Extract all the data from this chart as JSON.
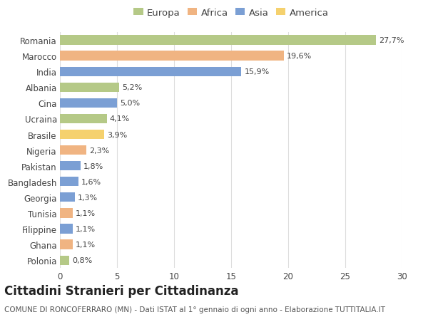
{
  "countries": [
    "Romania",
    "Marocco",
    "India",
    "Albania",
    "Cina",
    "Ucraina",
    "Brasile",
    "Nigeria",
    "Pakistan",
    "Bangladesh",
    "Georgia",
    "Tunisia",
    "Filippine",
    "Ghana",
    "Polonia"
  ],
  "values": [
    27.7,
    19.6,
    15.9,
    5.2,
    5.0,
    4.1,
    3.9,
    2.3,
    1.8,
    1.6,
    1.3,
    1.1,
    1.1,
    1.1,
    0.8
  ],
  "labels": [
    "27,7%",
    "19,6%",
    "15,9%",
    "5,2%",
    "5,0%",
    "4,1%",
    "3,9%",
    "2,3%",
    "1,8%",
    "1,6%",
    "1,3%",
    "1,1%",
    "1,1%",
    "1,1%",
    "0,8%"
  ],
  "continents": [
    "Europa",
    "Africa",
    "Asia",
    "Europa",
    "Asia",
    "Europa",
    "America",
    "Africa",
    "Asia",
    "Asia",
    "Asia",
    "Africa",
    "Asia",
    "Africa",
    "Europa"
  ],
  "continent_colors": {
    "Europa": "#b5c987",
    "Africa": "#f0b482",
    "Asia": "#7b9fd4",
    "America": "#f5d16e"
  },
  "legend_order": [
    "Europa",
    "Africa",
    "Asia",
    "America"
  ],
  "title": "Cittadini Stranieri per Cittadinanza",
  "subtitle": "COMUNE DI RONCOFERRARO (MN) - Dati ISTAT al 1° gennaio di ogni anno - Elaborazione TUTTITALIA.IT",
  "xlim": [
    0,
    30
  ],
  "xticks": [
    0,
    5,
    10,
    15,
    20,
    25,
    30
  ],
  "background_color": "#ffffff",
  "grid_color": "#dddddd",
  "bar_height": 0.6,
  "title_fontsize": 12,
  "subtitle_fontsize": 7.5,
  "label_fontsize": 8,
  "tick_fontsize": 8.5,
  "legend_fontsize": 9.5
}
